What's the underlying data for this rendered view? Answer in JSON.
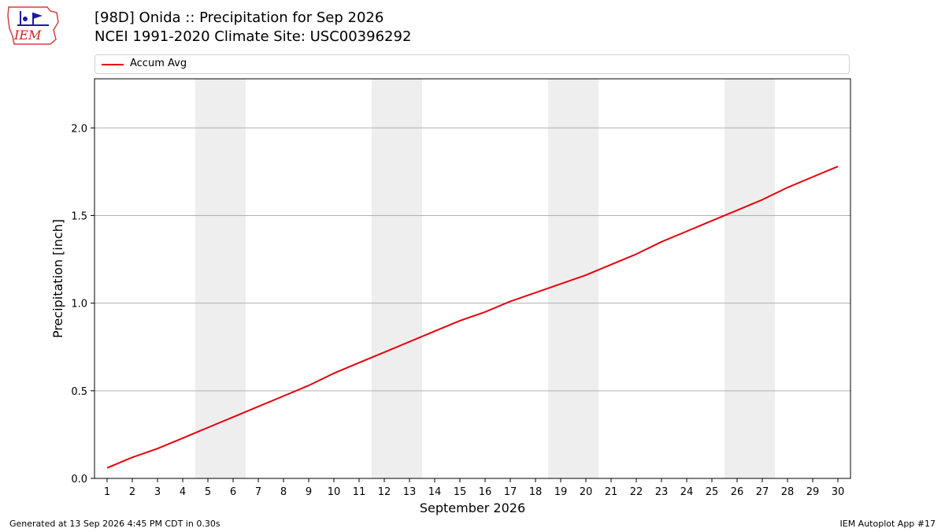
{
  "header": {
    "title": "[98D] Onida :: Precipitation for Sep 2026",
    "subtitle": "NCEI 1991-2020 Climate Site: USC00396292",
    "logo_text": "IEM"
  },
  "legend": {
    "label": "Accum Avg",
    "color": "#e8000b"
  },
  "footer": {
    "left": "Generated at 13 Sep 2026 4:45 PM CDT in 0.30s",
    "right": "IEM Autoplot App #17"
  },
  "chart_data": {
    "type": "line",
    "xlabel": "September 2026",
    "ylabel": "Precipitation [inch]",
    "xlim": [
      0.5,
      30.5
    ],
    "ylim": [
      0,
      2.28
    ],
    "yticks": [
      0.0,
      0.5,
      1.0,
      1.5,
      2.0
    ],
    "ytick_labels": [
      "0.0",
      "0.5",
      "1.0",
      "1.5",
      "2.0"
    ],
    "grid": "horizontal",
    "legend_position": "top",
    "weekend_shading": [
      [
        4.5,
        6.5
      ],
      [
        11.5,
        13.5
      ],
      [
        18.5,
        20.5
      ],
      [
        25.5,
        27.5
      ]
    ],
    "series": [
      {
        "name": "Accum Avg",
        "color": "#e8000b",
        "x": [
          1,
          2,
          3,
          4,
          5,
          6,
          7,
          8,
          9,
          10,
          11,
          12,
          13,
          14,
          15,
          16,
          17,
          18,
          19,
          20,
          21,
          22,
          23,
          24,
          25,
          26,
          27,
          28,
          29,
          30
        ],
        "values": [
          0.06,
          0.12,
          0.17,
          0.23,
          0.29,
          0.35,
          0.41,
          0.47,
          0.53,
          0.6,
          0.66,
          0.72,
          0.78,
          0.84,
          0.9,
          0.95,
          1.01,
          1.06,
          1.11,
          1.16,
          1.22,
          1.28,
          1.35,
          1.41,
          1.47,
          1.53,
          1.59,
          1.66,
          1.72,
          1.78
        ]
      }
    ]
  }
}
